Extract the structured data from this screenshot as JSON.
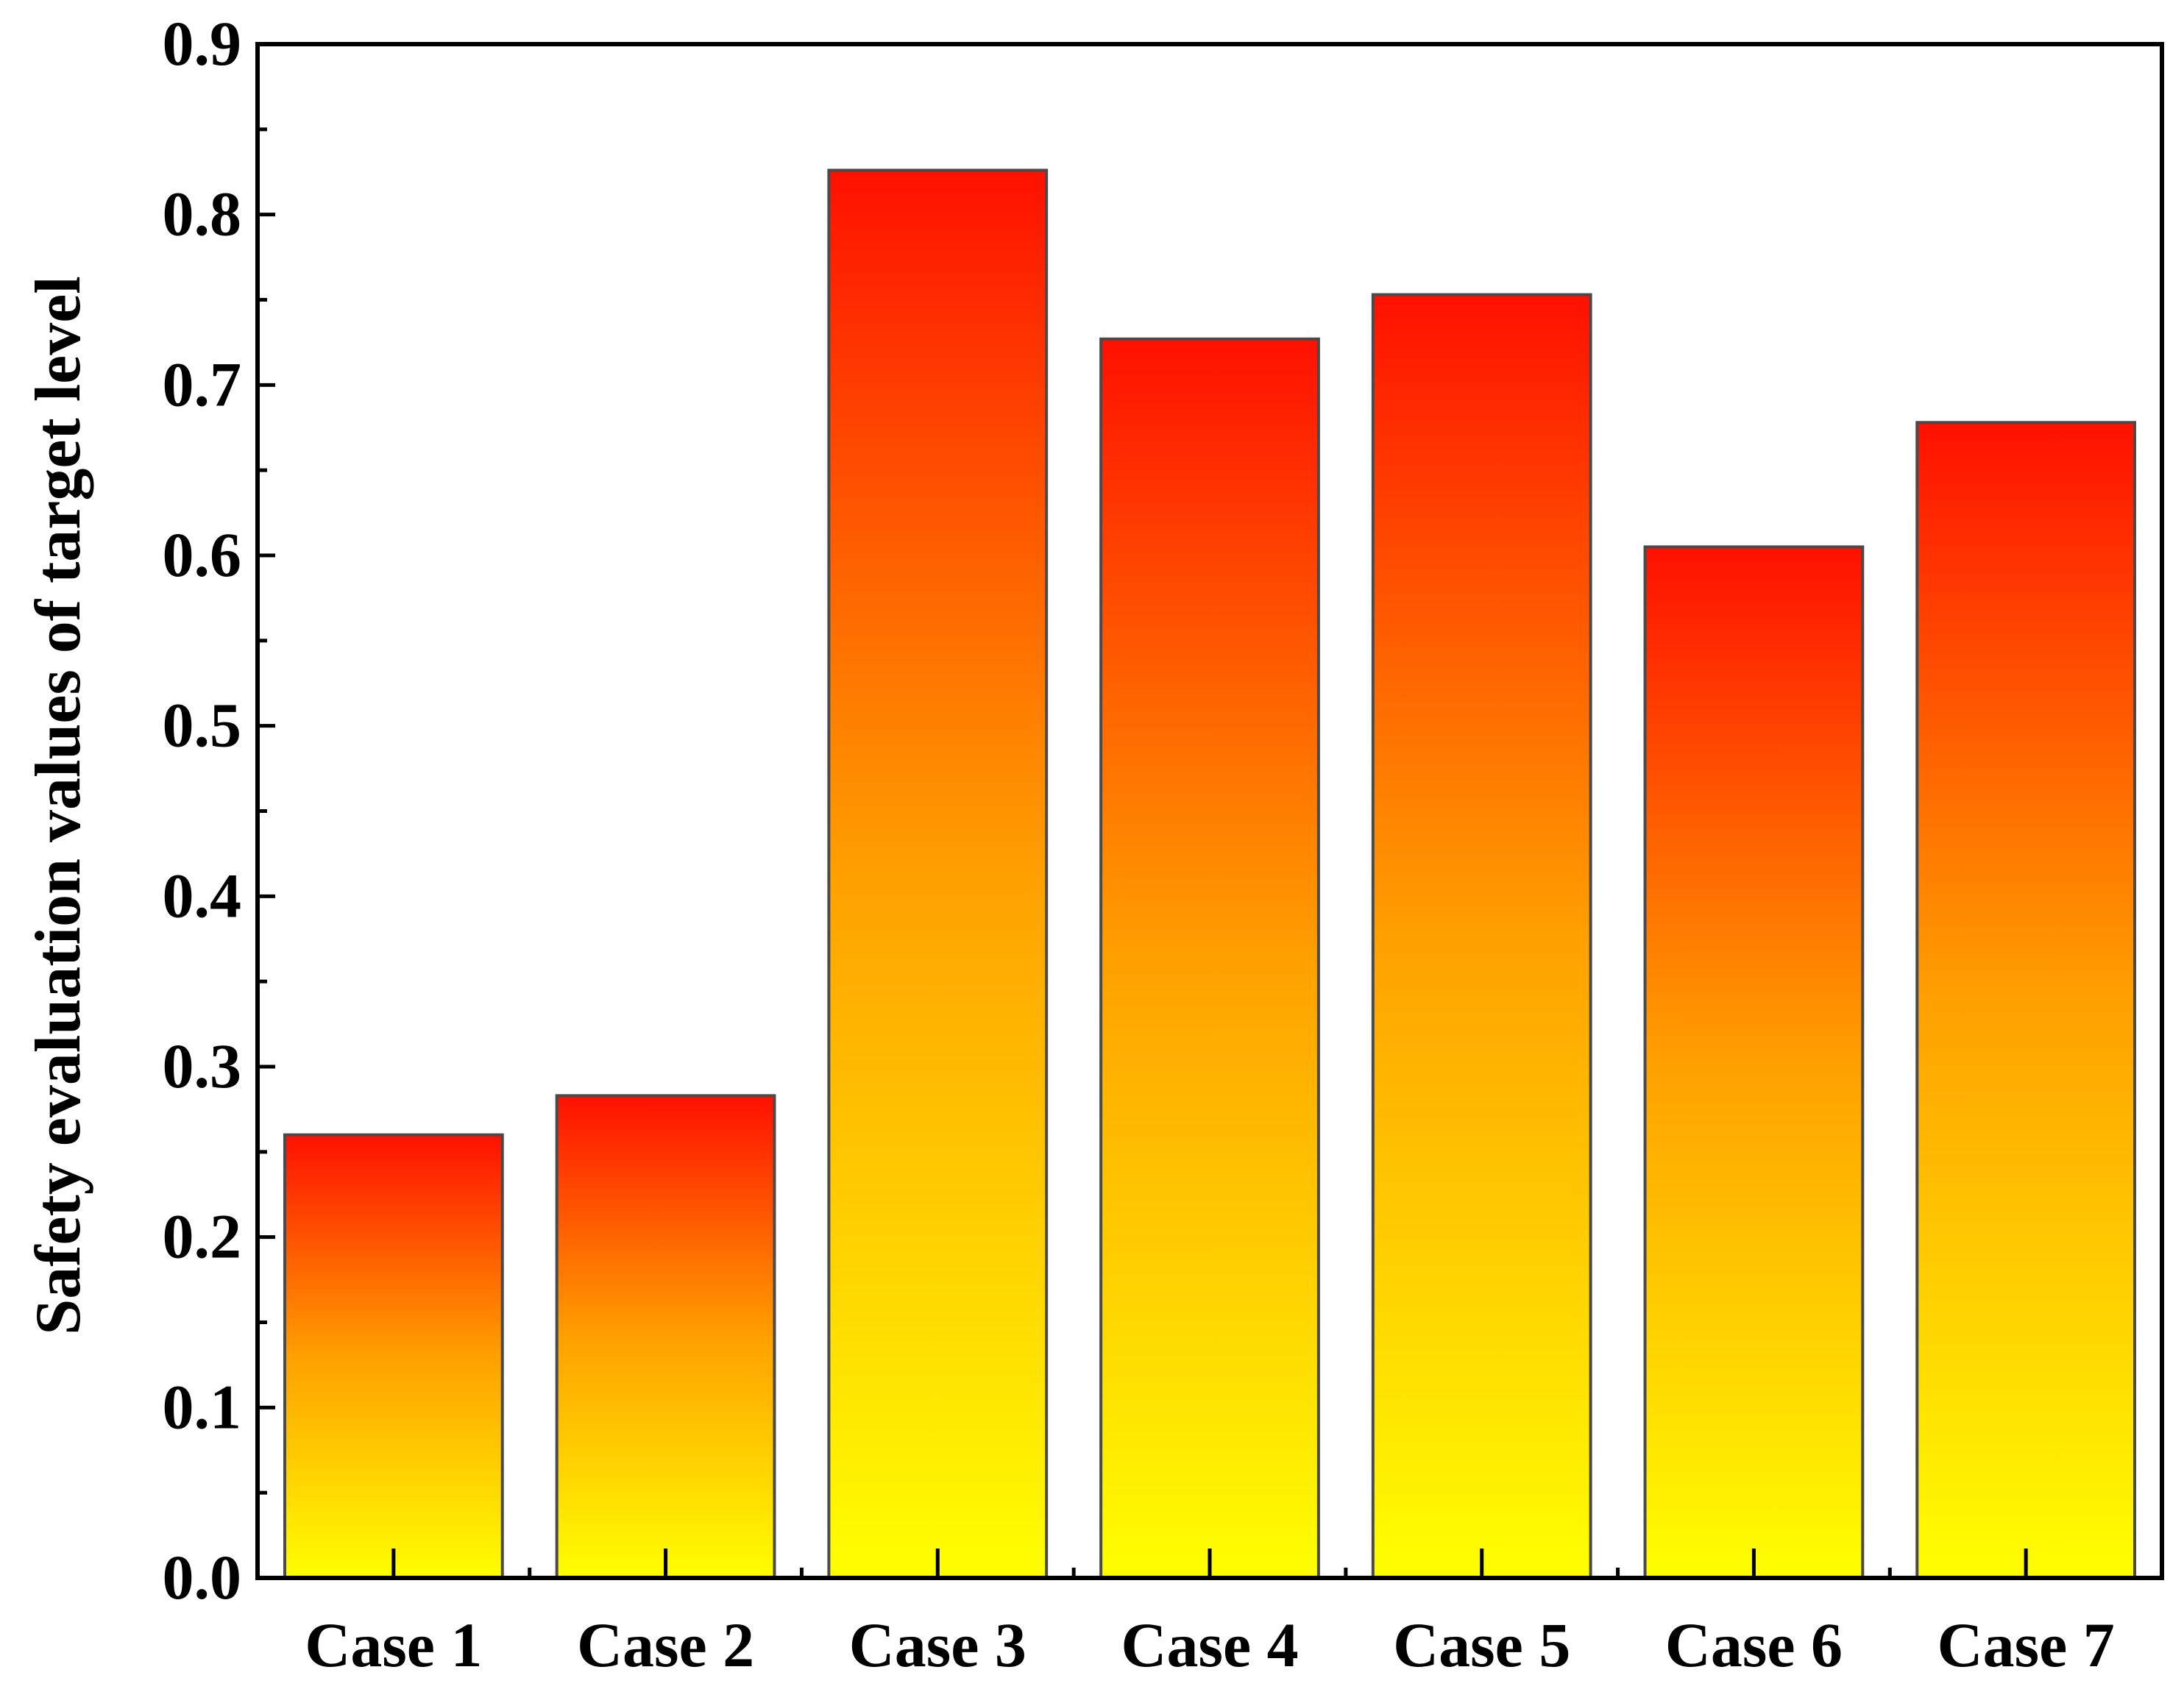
{
  "chart_data": {
    "type": "bar",
    "title": "",
    "xlabel": "",
    "ylabel": "Safety evaluation values of target level",
    "categories": [
      "Case 1",
      "Case 2",
      "Case 3",
      "Case 4",
      "Case 5",
      "Case 6",
      "Case 7"
    ],
    "values": [
      0.26,
      0.283,
      0.826,
      0.727,
      0.753,
      0.605,
      0.678
    ],
    "ylim": [
      0.0,
      0.9
    ],
    "yticks": [
      "0.0",
      "0.1",
      "0.2",
      "0.3",
      "0.4",
      "0.5",
      "0.6",
      "0.7",
      "0.8",
      "0.9"
    ],
    "grid": false,
    "legend": "none",
    "colors": {
      "bar_top": "#ff1000",
      "bar_mid": "#ffa000",
      "bar_bottom": "#ffff00",
      "bar_edge": "#4a4a4a",
      "axis": "#000000"
    }
  }
}
